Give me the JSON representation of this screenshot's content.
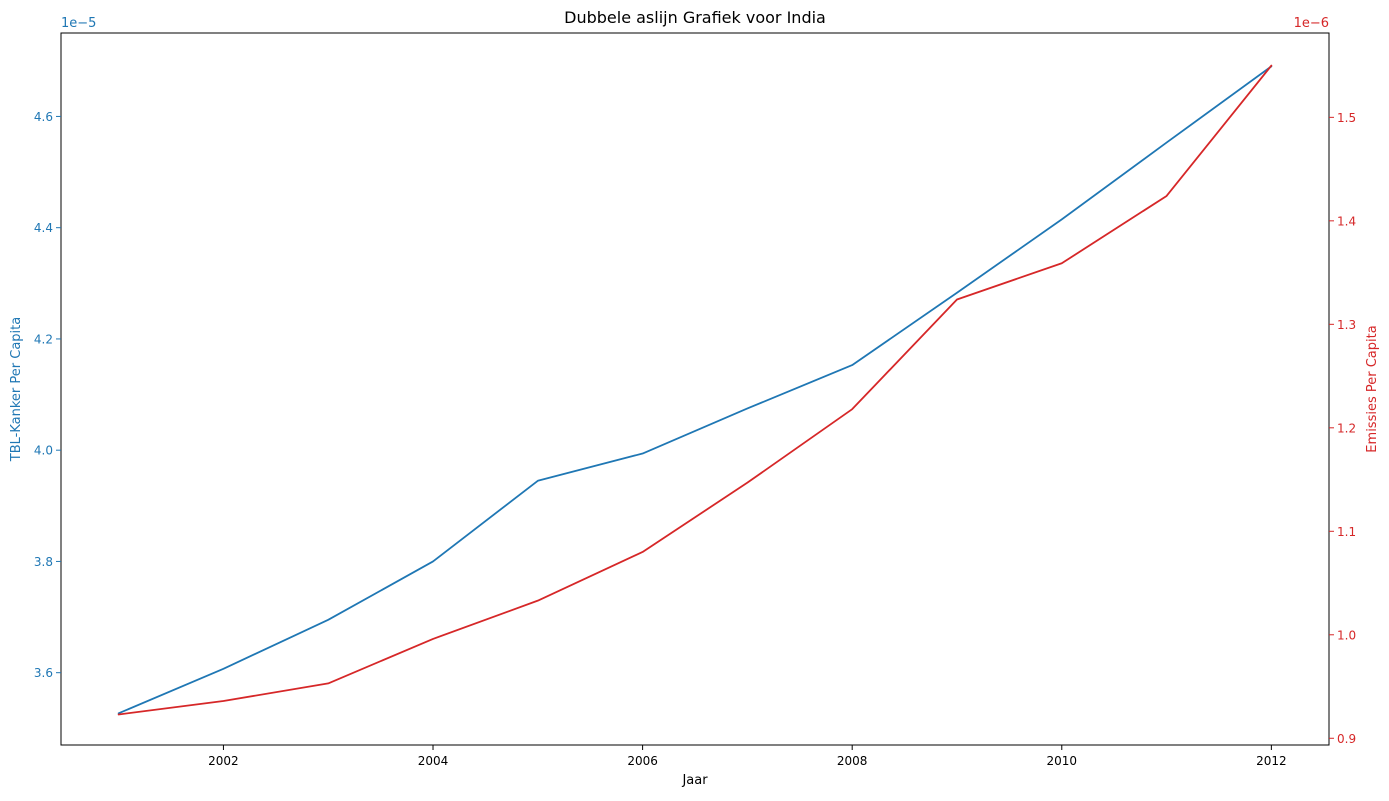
{
  "chart_data": {
    "type": "line",
    "title": "Dubbele aslijn Grafiek voor India",
    "xlabel": "Jaar",
    "x": [
      2001,
      2002,
      2003,
      2004,
      2005,
      2006,
      2007,
      2008,
      2009,
      2010,
      2011,
      2012
    ],
    "xlim": [
      2000.45,
      2012.55
    ],
    "xticks": [
      2002,
      2004,
      2006,
      2008,
      2010,
      2012
    ],
    "grid": false,
    "axes": {
      "left": {
        "label": "TBL-Kanker Per Capita",
        "multiplier_label": "1e−5",
        "color": "#1f77b4",
        "ylim": [
          3.47,
          4.75
        ],
        "ticks": [
          3.6,
          3.8,
          4.0,
          4.2,
          4.4,
          4.6
        ],
        "tick_labels": [
          "3.6",
          "3.8",
          "4.0",
          "4.2",
          "4.4",
          "4.6"
        ]
      },
      "right": {
        "label": "Emissies Per Capita",
        "multiplier_label": "1e−6",
        "color": "#d62728",
        "ylim": [
          0.8935,
          1.5815
        ],
        "ticks": [
          0.9,
          1.0,
          1.1,
          1.2,
          1.3,
          1.4,
          1.5
        ],
        "tick_labels": [
          "0.9",
          "1.0",
          "1.1",
          "1.2",
          "1.3",
          "1.4",
          "1.5"
        ]
      }
    },
    "series": [
      {
        "axis": "left",
        "color": "#1f77b4",
        "values": [
          3.527,
          3.607,
          3.695,
          3.8,
          3.945,
          3.994,
          4.075,
          4.153,
          4.283,
          4.415,
          4.553,
          4.69
        ]
      },
      {
        "axis": "right",
        "color": "#d62728",
        "values": [
          0.923,
          0.936,
          0.953,
          0.996,
          1.033,
          1.08,
          1.147,
          1.218,
          1.324,
          1.359,
          1.424,
          1.55
        ]
      }
    ]
  }
}
